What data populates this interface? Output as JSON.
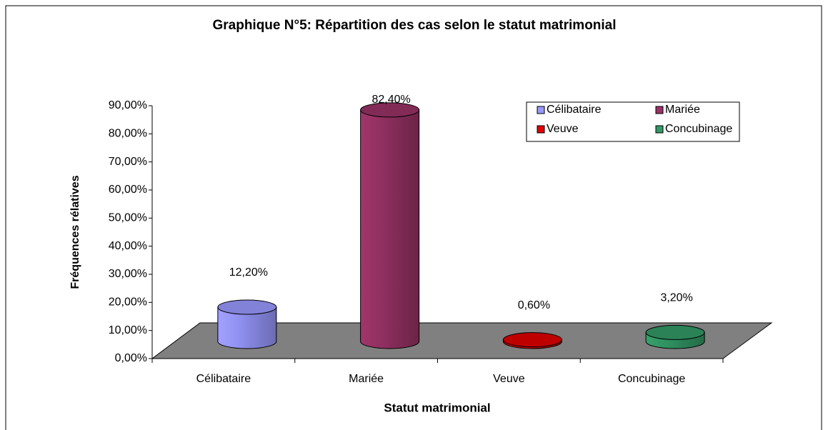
{
  "chart_data": {
    "type": "bar3d",
    "title": "Graphique N°5: Répartition des cas selon le statut matrimonial",
    "x_label": "Statut matrimonial",
    "y_label": "Fréquences rélatives",
    "categories": [
      "Célibataire",
      "Mariée",
      "Veuve",
      "Concubinage"
    ],
    "values": [
      12.2,
      82.4,
      0.6,
      3.2
    ],
    "value_labels": [
      "12,20%",
      "82,40%",
      "0,60%",
      "3,20%"
    ],
    "colors": [
      "#9999ff",
      "#993366",
      "#e00000",
      "#339966"
    ],
    "ylim": [
      0,
      90
    ],
    "yticks": [
      {
        "value": 0,
        "label": "0,00%"
      },
      {
        "value": 10,
        "label": "10,00%"
      },
      {
        "value": 20,
        "label": "20,00%"
      },
      {
        "value": 30,
        "label": "30,00%"
      },
      {
        "value": 40,
        "label": "40,00%"
      },
      {
        "value": 50,
        "label": "50,00%"
      },
      {
        "value": 60,
        "label": "60,00%"
      },
      {
        "value": 70,
        "label": "70,00%"
      },
      {
        "value": 80,
        "label": "80,00%"
      },
      {
        "value": 90,
        "label": "90,00%"
      }
    ],
    "legend": "top-right"
  }
}
